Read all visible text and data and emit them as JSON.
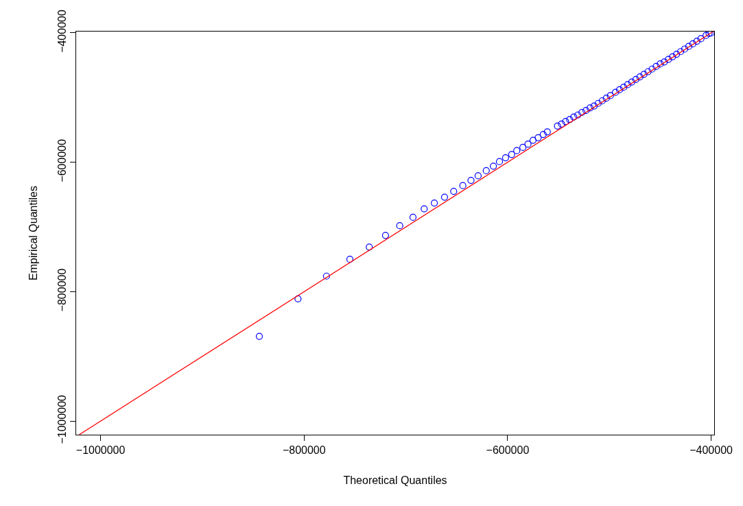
{
  "chart_data": {
    "type": "scatter",
    "xlabel": "Theoretical Quantiles",
    "ylabel": "Empirical Quantiles",
    "xlim": [
      -1024000,
      -397000
    ],
    "ylim": [
      -1021000,
      -398000
    ],
    "xticks": [
      {
        "value": -1000000,
        "label": "−1000000"
      },
      {
        "value": -800000,
        "label": "−800000"
      },
      {
        "value": -600000,
        "label": "−600000"
      },
      {
        "value": -400000,
        "label": "−400000"
      }
    ],
    "yticks": [
      {
        "value": -1000000,
        "label": "−1000000"
      },
      {
        "value": -800000,
        "label": "−800000"
      },
      {
        "value": -600000,
        "label": "−600000"
      },
      {
        "value": -400000,
        "label": "−400000"
      }
    ],
    "grid": false,
    "marker": "circle",
    "series": [
      {
        "color": "#0000ff",
        "x": [
          -844000,
          -806000,
          -778000,
          -755000,
          -736000,
          -720000,
          -706000,
          -693000,
          -682000,
          -672000,
          -662000,
          -653000,
          -644000,
          -636000,
          -629000,
          -621000,
          -614000,
          -608000,
          -602000,
          -596000,
          -591000,
          -585000,
          -580000,
          -575000,
          -570000,
          -565000,
          -561000,
          -551000,
          -547000,
          -543000,
          -539000,
          -535000,
          -531000,
          -527000,
          -523000,
          -519000,
          -515000,
          -511000,
          -507000,
          -503000,
          -499000,
          -494000,
          -490000,
          -486000,
          -482000,
          -478000,
          -474000,
          -470000,
          -466000,
          -462000,
          -458000,
          -454000,
          -450000,
          -446000,
          -442000,
          -438000,
          -434000,
          -430000,
          -426000,
          -422000,
          -418000,
          -414000,
          -410000,
          -405000,
          -402000,
          -400000
        ],
        "values": [
          -869000,
          -811000,
          -776000,
          -750000,
          -731000,
          -713000,
          -698000,
          -685000,
          -672000,
          -663000,
          -654000,
          -645000,
          -636000,
          -628000,
          -621000,
          -613000,
          -606000,
          -599000,
          -593000,
          -588000,
          -582000,
          -577000,
          -572000,
          -566000,
          -562000,
          -557000,
          -553000,
          -544000,
          -541000,
          -537000,
          -534000,
          -530000,
          -527000,
          -523000,
          -520000,
          -516000,
          -513000,
          -509000,
          -505000,
          -501000,
          -497000,
          -492000,
          -488000,
          -484000,
          -480000,
          -476000,
          -472000,
          -468000,
          -464000,
          -460000,
          -456000,
          -452000,
          -448000,
          -445000,
          -441000,
          -437000,
          -433000,
          -429000,
          -425000,
          -421000,
          -417000,
          -413000,
          -409000,
          -404000,
          -401000,
          -400000
        ]
      },
      {
        "type": "line",
        "marker": "none",
        "color": "#ff0000",
        "x": [
          -1021000,
          -398000
        ],
        "values": [
          -1021000,
          -398000
        ]
      }
    ]
  }
}
